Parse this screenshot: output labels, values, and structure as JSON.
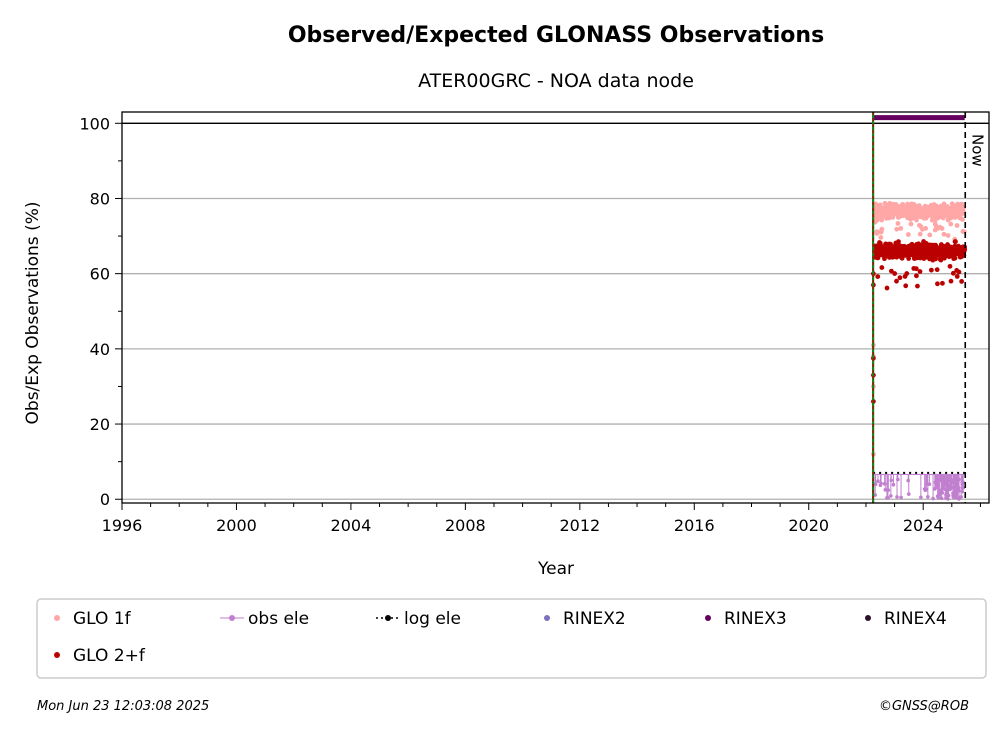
{
  "chart_data": {
    "type": "scatter",
    "title": "Observed/Expected GLONASS Observations",
    "subtitle": "ATER00GRC - NOA data node",
    "xlabel": "Year",
    "ylabel": "Obs/Exp Observations (%)",
    "xlim": [
      1996,
      2026.3
    ],
    "ylim": [
      -1,
      103
    ],
    "x_ticks": [
      1996,
      2000,
      2004,
      2008,
      2012,
      2016,
      2020,
      2024
    ],
    "y_ticks": [
      0,
      20,
      40,
      60,
      80,
      100
    ],
    "grid": "horizontal",
    "hline": 100,
    "vline_start": 2022.25,
    "vline_now": 2025.47,
    "now_label": "Now",
    "series": [
      {
        "name": "GLO 1f",
        "color": "#ffa6a6",
        "band": [
          68,
          80
        ],
        "x_range": [
          2022.3,
          2025.45
        ]
      },
      {
        "name": "obs ele",
        "color": "#c07fcf",
        "band": [
          0,
          7
        ],
        "x_range": [
          2022.3,
          2025.45
        ]
      },
      {
        "name": "log ele",
        "color": "#000000",
        "value": 7,
        "x_range": [
          2022.25,
          2025.45
        ]
      },
      {
        "name": "RINEX2",
        "color": "#7f6fbf",
        "values": []
      },
      {
        "name": "RINEX3",
        "color": "#66005e",
        "value": 101.5,
        "x_range": [
          2022.25,
          2025.45
        ]
      },
      {
        "name": "RINEX4",
        "color": "#2b0f2b",
        "values": []
      },
      {
        "name": "GLO 2+f",
        "color": "#bb0000",
        "band": [
          55,
          72
        ],
        "x_range": [
          2022.3,
          2025.45
        ]
      }
    ],
    "legend_position": "bottom"
  },
  "footer": {
    "timestamp": "Mon Jun 23 12:03:08 2025",
    "credit": "©GNSS@ROB"
  }
}
